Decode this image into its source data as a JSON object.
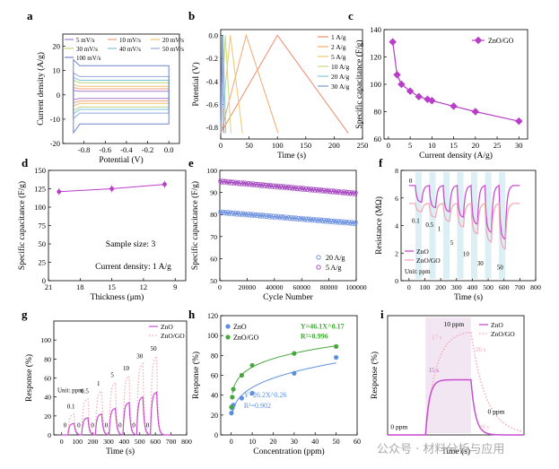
{
  "chart_data": [
    {
      "panel": "a",
      "type": "line",
      "xlabel": "Potential (V)",
      "ylabel": "Current density (A/g)",
      "xlim": [
        -1.0,
        0.1
      ],
      "ylim": [
        -20,
        25
      ],
      "xticks": [
        "-0.8",
        "-0.6",
        "-0.4",
        "-0.2",
        "0.0"
      ],
      "yticks": [
        "-20",
        "-10",
        "0",
        "10",
        "20"
      ],
      "series": [
        {
          "name": "5 mV/s",
          "half": 1.5
        },
        {
          "name": "10 mV/s",
          "half": 2.5
        },
        {
          "name": "20 mV/s",
          "half": 3.5
        },
        {
          "name": "30 mV/s",
          "half": 5.0
        },
        {
          "name": "40 mV/s",
          "half": 6.0
        },
        {
          "name": "50 mV/s",
          "half": 7.5
        },
        {
          "name": "100 mV/s",
          "half": 12.0
        }
      ],
      "colors": [
        "#a779d0",
        "#f2a07c",
        "#f3c06a",
        "#bcd37a",
        "#7ec4d8",
        "#95a8dc",
        "#6f86c8"
      ]
    },
    {
      "panel": "b",
      "type": "line",
      "xlabel": "Time (s)",
      "ylabel": "Potential (V)",
      "xlim": [
        0,
        250
      ],
      "ylim": [
        -0.9,
        0.05
      ],
      "xticks": [
        "0",
        "50",
        "100",
        "150",
        "200",
        "250"
      ],
      "yticks": [
        "0.0",
        "-0.2",
        "-0.4",
        "-0.6",
        "-0.8"
      ],
      "series": [
        {
          "name": "1 A/g",
          "peak": 100
        },
        {
          "name": "2 A/g",
          "peak": 45
        },
        {
          "name": "5 A/g",
          "peak": 17
        },
        {
          "name": "10 A/g",
          "peak": 8
        },
        {
          "name": "20 A/g",
          "peak": 4
        },
        {
          "name": "30 A/g",
          "peak": 2.5
        }
      ],
      "colors": [
        "#f08a6a",
        "#f3a86e",
        "#f3c66a",
        "#c9d97e",
        "#84c6dc",
        "#7e95d6"
      ]
    },
    {
      "panel": "c",
      "type": "line",
      "xlabel": "Current density (A/g)",
      "ylabel": "Specific capacitance (F/g)",
      "xlim": [
        -1,
        32
      ],
      "ylim": [
        60,
        140
      ],
      "xticks": [
        "0",
        "5",
        "10",
        "15",
        "20",
        "25",
        "30"
      ],
      "yticks": [
        "60",
        "80",
        "100",
        "120",
        "140"
      ],
      "legend": "ZnO/GO",
      "x": [
        1,
        2,
        3,
        5,
        7,
        9,
        10,
        15,
        20,
        30
      ],
      "y": [
        131,
        107,
        100,
        95,
        91,
        89,
        88,
        84,
        80,
        73
      ],
      "color": "#b93dc8"
    },
    {
      "panel": "d",
      "type": "line",
      "xlabel": "Thickness (μm)",
      "ylabel": "Specific capacitance (F/g)",
      "xlim": [
        21,
        8
      ],
      "ylim": [
        0,
        150
      ],
      "xticks": [
        "21",
        "18",
        "15",
        "12",
        "9"
      ],
      "yticks": [
        "0",
        "25",
        "50",
        "75",
        "100",
        "125",
        "150"
      ],
      "x": [
        20,
        15,
        10
      ],
      "y": [
        121,
        125,
        131
      ],
      "annotations": [
        "Sample size: 3",
        "Current density: 1 A/g"
      ],
      "color": "#b93dc8"
    },
    {
      "panel": "e",
      "type": "scatter",
      "xlabel": "Cycle Number",
      "ylabel": "Specific capacitance (F/g)",
      "xlim": [
        0,
        100000
      ],
      "ylim": [
        50,
        100
      ],
      "xticks": [
        "0",
        "20000",
        "40000",
        "60000",
        "80000",
        "100000"
      ],
      "yticks": [
        "50",
        "60",
        "70",
        "80",
        "90",
        "100"
      ],
      "series": [
        {
          "name": "20 A/g",
          "start": 81,
          "end": 76,
          "color": "#6b8fe0"
        },
        {
          "name": "5 A/g",
          "start": 95,
          "end": 89.5,
          "color": "#a443c0"
        }
      ]
    },
    {
      "panel": "f",
      "type": "line",
      "xlabel": "Time (s)",
      "ylabel": "Resistance (MΩ)",
      "xlim": [
        -50,
        800
      ],
      "ylim": [
        0,
        8
      ],
      "xticks": [
        "0",
        "100",
        "200",
        "300",
        "400",
        "500",
        "600",
        "700",
        "800"
      ],
      "yticks": [
        "0",
        "2",
        "4",
        "6",
        "8"
      ],
      "legend": [
        "ZnO",
        "ZnO/GO"
      ],
      "unit_label": "Unit: ppm",
      "conc_labels": [
        "0",
        "0.1",
        "0.5",
        "1",
        "5",
        "10",
        "30",
        "50"
      ],
      "colors": [
        "#c64fd1",
        "#f2a9b7"
      ]
    },
    {
      "panel": "g",
      "type": "line",
      "xlabel": "Time (s)",
      "ylabel": "Response (%)",
      "xlim": [
        -50,
        800
      ],
      "ylim": [
        0,
        120
      ],
      "xticks": [
        "0",
        "100",
        "200",
        "300",
        "400",
        "500",
        "600",
        "700",
        "800"
      ],
      "yticks": [
        "0",
        "20",
        "40",
        "60",
        "80",
        "100"
      ],
      "legend": [
        "ZnO",
        "ZnO/GO"
      ],
      "unit_label": "Unit: ppm",
      "conc_labels": [
        "0.1",
        "0.5",
        "1",
        "5",
        "10",
        "30",
        "50"
      ],
      "zero_labels": [
        "0",
        "0",
        "0",
        "0",
        "0",
        "0",
        "0"
      ],
      "znogo_peaks": [
        22,
        38,
        46,
        55,
        62,
        75,
        83
      ],
      "zno_peaks": [
        12,
        18,
        22,
        28,
        34,
        40,
        45
      ],
      "colors": [
        "#c64fd1",
        "#f2a9b7"
      ]
    },
    {
      "panel": "h",
      "type": "scatter",
      "xlabel": "Concentration (ppm)",
      "ylabel": "Response (%)",
      "xlim": [
        -5,
        60
      ],
      "ylim": [
        0,
        120
      ],
      "xticks": [
        "0",
        "10",
        "20",
        "30",
        "40",
        "50",
        "60"
      ],
      "yticks": [
        "0",
        "20",
        "40",
        "60",
        "80",
        "100",
        "120"
      ],
      "series": [
        {
          "name": "ZnO",
          "x": [
            0.1,
            0.5,
            1,
            5,
            10,
            30,
            50
          ],
          "y": [
            22,
            27,
            30,
            37,
            42,
            62,
            78
          ],
          "color": "#5b8fe0",
          "fit": "Y=26.2X^0.26",
          "r2": "R²=0.902"
        },
        {
          "name": "ZnO/GO",
          "x": [
            0.1,
            0.5,
            1,
            5,
            10,
            30,
            50
          ],
          "y": [
            28,
            38,
            46,
            60,
            70,
            82,
            89
          ],
          "color": "#48a83e",
          "fit": "Y=46.1X^0.17",
          "r2": "R²=0.996"
        }
      ]
    },
    {
      "panel": "i",
      "type": "line",
      "xlabel": "Time (s)",
      "ylabel": "Response (%)",
      "xlim": [
        -40,
        140
      ],
      "ylim": [
        0,
        80
      ],
      "legend": [
        "ZnO",
        "ZnO/GO"
      ],
      "annotations": [
        "10 ppm",
        "0 ppm",
        "0 ppm",
        "17 s",
        "15 s",
        "26 s",
        "29 s"
      ],
      "colors": [
        "#c64fd1",
        "#f2a9b7"
      ]
    }
  ],
  "watermark": "公众号 · 材料分析与应用"
}
